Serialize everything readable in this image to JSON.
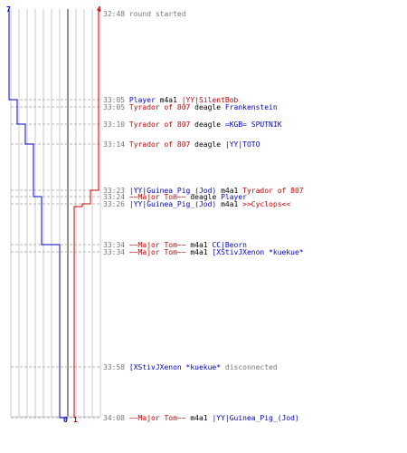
{
  "colors": {
    "blue": "#0000cc",
    "red": "#cc0000",
    "time": "#777777",
    "grid": "#c8c8c8",
    "center": "#909090",
    "text": "#000000"
  },
  "score": {
    "blue_start": "7",
    "red_start": "4",
    "blue_end": "0",
    "red_end": "1"
  },
  "events": [
    {
      "time": "32:48",
      "parts": [
        {
          "t": "round started",
          "c": "time"
        }
      ]
    },
    {
      "time": "33:05",
      "parts": [
        {
          "t": "Player",
          "c": "blue"
        },
        {
          "t": " m4a1 ",
          "c": "text"
        },
        {
          "t": "|YY|SilentBob",
          "c": "red"
        }
      ]
    },
    {
      "time": "33:05",
      "parts": [
        {
          "t": "Tyrador of 807",
          "c": "red"
        },
        {
          "t": " deagle ",
          "c": "text"
        },
        {
          "t": "Frankenstein",
          "c": "blue"
        }
      ]
    },
    {
      "time": "33:10",
      "parts": [
        {
          "t": "Tyrador of 807",
          "c": "red"
        },
        {
          "t": " deagle ",
          "c": "text"
        },
        {
          "t": "=KGB= SPUTNIK",
          "c": "blue"
        }
      ]
    },
    {
      "time": "33:14",
      "parts": [
        {
          "t": "Tyrador of 807",
          "c": "red"
        },
        {
          "t": " deagle ",
          "c": "text"
        },
        {
          "t": "|YY|TOTO",
          "c": "blue"
        }
      ]
    },
    {
      "time": "33:23",
      "parts": [
        {
          "t": "|YY|Guinea_Pig_(Jod)",
          "c": "blue"
        },
        {
          "t": " m4a1 ",
          "c": "text"
        },
        {
          "t": "Tyrador of 807",
          "c": "red"
        }
      ]
    },
    {
      "time": "33:24",
      "parts": [
        {
          "t": "~~Major Tom~~",
          "c": "red"
        },
        {
          "t": " deagle ",
          "c": "text"
        },
        {
          "t": "Player",
          "c": "blue"
        }
      ]
    },
    {
      "time": "33:26",
      "parts": [
        {
          "t": "|YY|Guinea_Pig_(Jod)",
          "c": "blue"
        },
        {
          "t": " m4a1 ",
          "c": "text"
        },
        {
          "t": ">>Cyclops<<",
          "c": "red"
        }
      ]
    },
    {
      "time": "33:34",
      "parts": [
        {
          "t": "~~Major Tom~~",
          "c": "red"
        },
        {
          "t": " m4a1 ",
          "c": "text"
        },
        {
          "t": "CC|Beorn",
          "c": "blue"
        }
      ]
    },
    {
      "time": "33:34",
      "parts": [
        {
          "t": "~~Major Tom~~",
          "c": "red"
        },
        {
          "t": " m4a1 ",
          "c": "text"
        },
        {
          "t": "[XStivJXenon *kuekue*",
          "c": "blue"
        }
      ]
    },
    {
      "time": "33:58",
      "parts": [
        {
          "t": "[XStivJXenon *kuekue*",
          "c": "blue"
        },
        {
          "t": " disconnected",
          "c": "time"
        }
      ]
    },
    {
      "time": "34:08",
      "parts": [
        {
          "t": "~~Major Tom~~",
          "c": "red"
        },
        {
          "t": " m4a1 ",
          "c": "text"
        },
        {
          "t": "|YY|Guinea_Pig_(Jod)",
          "c": "blue"
        }
      ]
    }
  ]
}
